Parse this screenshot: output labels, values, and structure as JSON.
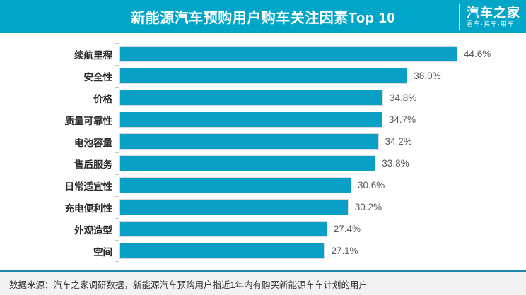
{
  "header": {
    "title": "新能源汽车预购用户购车关注因素Top 10",
    "bg_color": "#00a5c8",
    "logo": {
      "name": "汽车之家",
      "tagline": "看车·买车·用车"
    }
  },
  "chart_data": {
    "type": "bar",
    "orientation": "horizontal",
    "title": "新能源汽车预购用户购车关注因素Top 10",
    "categories": [
      "续航里程",
      "安全性",
      "价格",
      "质量可靠性",
      "电池容量",
      "售后服务",
      "日常适宜性",
      "充电便利性",
      "外观造型",
      "空间"
    ],
    "values": [
      44.6,
      38.0,
      34.8,
      34.7,
      34.2,
      33.8,
      30.6,
      30.2,
      27.4,
      27.1
    ],
    "value_labels": [
      "44.6%",
      "38.0%",
      "34.8%",
      "34.7%",
      "34.2%",
      "33.8%",
      "30.6%",
      "30.2%",
      "27.4%",
      "27.1%"
    ],
    "xlabel": "",
    "ylabel": "",
    "xlim": [
      0,
      50
    ],
    "grid": false,
    "legend": false,
    "bar_color": "#0a9fc5",
    "axis_color": "#c6c6c6"
  },
  "footer": {
    "source_text": "数据来源：汽车之家调研数据，新能源汽车预购用户指近1年内有购买新能源车车计划的用户"
  }
}
